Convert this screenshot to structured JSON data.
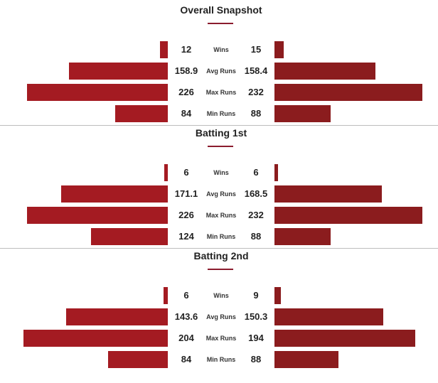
{
  "colors": {
    "left_bar": "#a41b22",
    "right_bar": "#8b1c1e",
    "underline": "#8b1c2e"
  },
  "chart_data": [
    {
      "type": "bar",
      "title": "Overall Snapshot",
      "categories": [
        "Wins",
        "Avg Runs",
        "Max Runs",
        "Min Runs"
      ],
      "series": [
        {
          "values": [
            12,
            158.9,
            226,
            84
          ]
        },
        {
          "values": [
            15,
            158.4,
            232,
            88
          ]
        }
      ],
      "labels_left": [
        "12",
        "158.9",
        "226",
        "84"
      ],
      "labels_right": [
        "15",
        "158.4",
        "232",
        "88"
      ]
    },
    {
      "type": "bar",
      "title": "Batting 1st",
      "categories": [
        "Wins",
        "Avg Runs",
        "Max Runs",
        "Min Runs"
      ],
      "series": [
        {
          "values": [
            6,
            171.1,
            226,
            124
          ]
        },
        {
          "values": [
            6,
            168.5,
            232,
            88
          ]
        }
      ],
      "labels_left": [
        "6",
        "171.1",
        "226",
        "124"
      ],
      "labels_right": [
        "6",
        "168.5",
        "232",
        "88"
      ]
    },
    {
      "type": "bar",
      "title": "Batting 2nd",
      "categories": [
        "Wins",
        "Avg Runs",
        "Max Runs",
        "Min Runs"
      ],
      "series": [
        {
          "values": [
            6,
            143.6,
            204,
            84
          ]
        },
        {
          "values": [
            9,
            150.3,
            194,
            88
          ]
        }
      ],
      "labels_left": [
        "6",
        "143.6",
        "204",
        "84"
      ],
      "labels_right": [
        "9",
        "150.3",
        "194",
        "88"
      ]
    }
  ]
}
